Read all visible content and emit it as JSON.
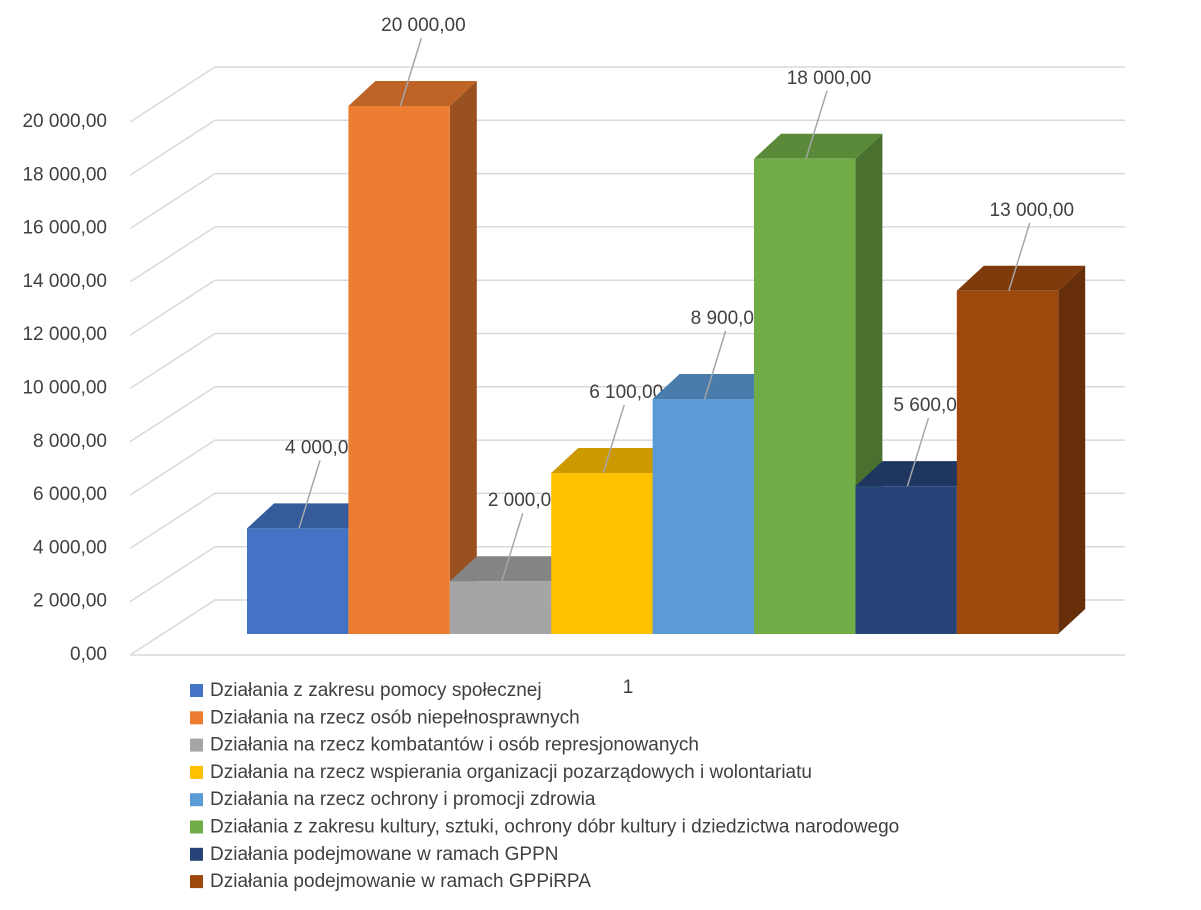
{
  "chart_data": {
    "type": "bar3d",
    "categories": [
      "1"
    ],
    "series": [
      {
        "name": "Działania z zakresu pomocy społecznej",
        "color": "#4472c4",
        "values": [
          4000
        ],
        "value_labels": [
          "4 000,00"
        ]
      },
      {
        "name": "Działania na rzecz osób niepełnosprawnych",
        "color": "#ed7d31",
        "values": [
          20000
        ],
        "value_labels": [
          "20 000,00"
        ]
      },
      {
        "name": "Działania na rzecz kombatantów i osób represjonowanych",
        "color": "#a5a5a5",
        "values": [
          2000
        ],
        "value_labels": [
          "2 000,00"
        ]
      },
      {
        "name": "Działania na rzecz wspierania organizacji pozarządowych i wolontariatu",
        "color": "#ffc000",
        "values": [
          6100
        ],
        "value_labels": [
          "6 100,00"
        ]
      },
      {
        "name": "Działania na rzecz ochrony i promocji zdrowia",
        "color": "#5b9bd5",
        "values": [
          8900
        ],
        "value_labels": [
          "8 900,00"
        ]
      },
      {
        "name": "Działania z zakresu kultury, sztuki, ochrony dóbr kultury i dziedzictwa narodowego",
        "color": "#70ad47",
        "values": [
          18000
        ],
        "value_labels": [
          "18 000,00"
        ]
      },
      {
        "name": "Działania podejmowane w ramach GPPN",
        "color": "#264478",
        "values": [
          5600
        ],
        "value_labels": [
          "5 600,00"
        ]
      },
      {
        "name": "Działania podejmowanie w ramach GPPiRPA",
        "color": "#9e480e",
        "values": [
          13000
        ],
        "value_labels": [
          "13 000,00"
        ]
      }
    ],
    "ylim": [
      0,
      20000
    ],
    "yticks": [
      {
        "value": 0,
        "label": "0,00"
      },
      {
        "value": 2000,
        "label": "2 000,00"
      },
      {
        "value": 4000,
        "label": "4 000,00"
      },
      {
        "value": 6000,
        "label": "6 000,00"
      },
      {
        "value": 8000,
        "label": "8 000,00"
      },
      {
        "value": 10000,
        "label": "10 000,00"
      },
      {
        "value": 12000,
        "label": "12 000,00"
      },
      {
        "value": 14000,
        "label": "14 000,00"
      },
      {
        "value": 16000,
        "label": "16 000,00"
      },
      {
        "value": 18000,
        "label": "18 000,00"
      },
      {
        "value": 20000,
        "label": "20 000,00"
      }
    ],
    "grid": true,
    "legend": "bottom"
  }
}
